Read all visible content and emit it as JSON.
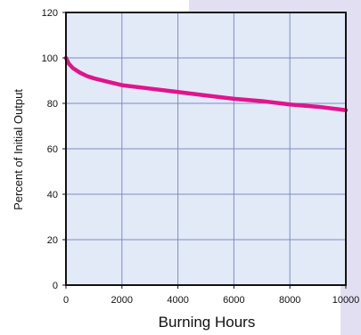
{
  "chart_data": {
    "type": "line",
    "title": "",
    "xlabel": "Burning Hours",
    "ylabel": "Percent of Initial Output",
    "xlim": [
      0,
      10000
    ],
    "ylim": [
      0,
      120
    ],
    "x_ticks": [
      0,
      2000,
      4000,
      6000,
      8000,
      10000
    ],
    "y_ticks": [
      0,
      20,
      40,
      60,
      80,
      100,
      120
    ],
    "grid": true,
    "legend": "none",
    "series": [
      {
        "x": [
          0,
          100,
          250,
          500,
          750,
          1000,
          1500,
          2000,
          3000,
          4000,
          5000,
          6000,
          7000,
          8000,
          9000,
          10000
        ],
        "y": [
          100,
          97.5,
          95.5,
          93.5,
          92,
          91,
          89.5,
          88,
          86.5,
          85,
          83.5,
          82,
          81,
          79.5,
          78.5,
          77
        ],
        "color": "#e0148c"
      }
    ]
  },
  "colors": {
    "plot_background": "#e2eaf8",
    "grid": "#7f8cc0",
    "line": "#e0148c",
    "header_band": "#e3dff3"
  }
}
